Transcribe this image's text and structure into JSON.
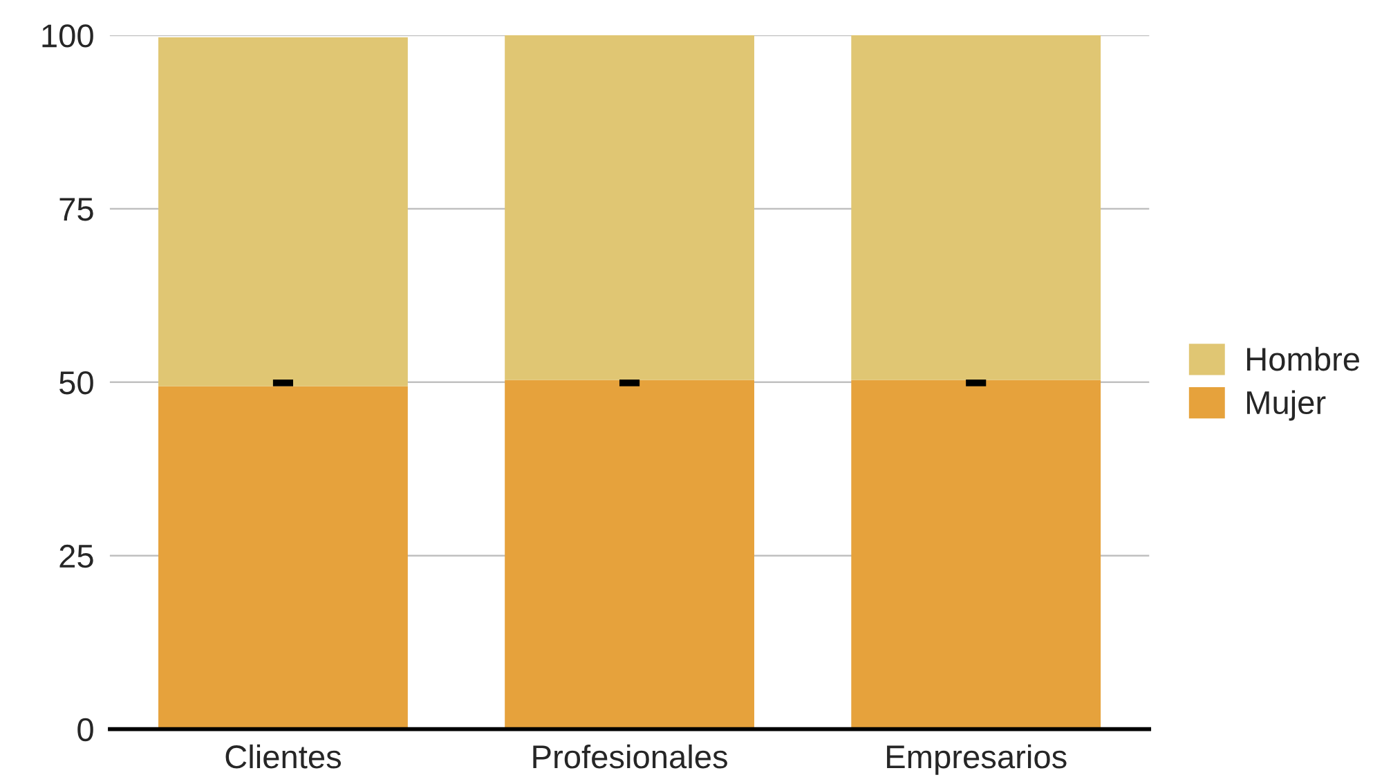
{
  "chart_data": {
    "type": "bar",
    "stacked": true,
    "categories": [
      "Clientes",
      "Profesionales",
      "Empresarios"
    ],
    "series": [
      {
        "name": "Mujer",
        "color": "#e6a23c",
        "values": [
          49.4,
          50.3,
          50.3
        ]
      },
      {
        "name": "Hombre",
        "color": "#e0c673",
        "values": [
          50.3,
          49.7,
          49.7
        ]
      },
      {
        "type": "scatter",
        "color": "#000000",
        "marker": "square",
        "x": [
          "Clientes",
          "Profesionales",
          "Empresarios"
        ],
        "values": [
          49.9,
          49.9,
          49.9
        ]
      }
    ],
    "ylim": [
      0,
      100
    ],
    "yticks": [
      0,
      25,
      50,
      75,
      100
    ],
    "grid": "y",
    "legend": "right"
  }
}
